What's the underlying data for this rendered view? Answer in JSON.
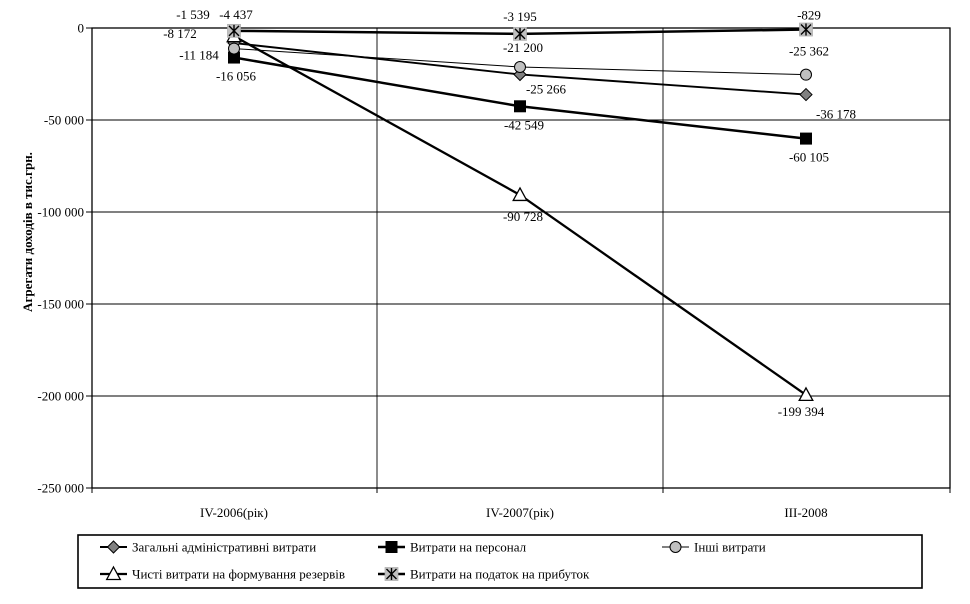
{
  "chart_data": {
    "type": "line",
    "title": "",
    "ylabel": "Агрегати доходів в тис.грн.",
    "xlabel": "",
    "categories": [
      "IV-2006(рік)",
      "IV-2007(рік)",
      "III-2008"
    ],
    "y_axis": {
      "min": -250000,
      "max": 0,
      "step": 50000,
      "tick_labels": [
        "0",
        "-50 000",
        "-100 000",
        "-150 000",
        "-200 000",
        "-250 000"
      ]
    },
    "grid": true,
    "legend_position": "bottom",
    "colors": {
      "line": "#000000",
      "diamond_fill": "#808080",
      "square_fill": "#000000",
      "circle_fill": "#c0c0c0",
      "triangle_fill": "#ffffff",
      "star_fill": "#c0c0c0",
      "text": "#000000",
      "background": "#ffffff"
    },
    "series": [
      {
        "name": "Загальні адміністративні витрати",
        "marker": "diamond",
        "marker_fill": "#808080",
        "line_width": 1.9,
        "values": [
          -8172,
          -25266,
          -36178
        ],
        "labels": [
          "-8 172",
          "-25 266",
          "-36 178"
        ],
        "label_offsets": [
          [
            -54,
            -5
          ],
          [
            26,
            19
          ],
          [
            30,
            24
          ]
        ]
      },
      {
        "name": "Витрати на персонал",
        "marker": "square",
        "marker_fill": "#000000",
        "line_width": 2.5,
        "values": [
          -16056,
          -42549,
          -60105
        ],
        "labels": [
          "-16 056",
          "-42 549",
          "-60 105"
        ],
        "label_offsets": [
          [
            2,
            23
          ],
          [
            4,
            23
          ],
          [
            3,
            23
          ]
        ]
      },
      {
        "name": "Інші витрати",
        "marker": "circle",
        "marker_fill": "#c0c0c0",
        "line_width": 1,
        "values": [
          -11184,
          -21200,
          -25362
        ],
        "labels": [
          "-11 184",
          "-21 200",
          "-25 362"
        ],
        "label_offsets": [
          [
            -35,
            11
          ],
          [
            3,
            -15
          ],
          [
            3,
            -19
          ]
        ]
      },
      {
        "name": "Чисті витрати на формування резервів",
        "marker": "triangle",
        "marker_fill": "#ffffff",
        "line_width": 2.3,
        "values": [
          -4437,
          -90728,
          -199394
        ],
        "labels": [
          "-4 437",
          "-90 728",
          "-199 394"
        ],
        "label_offsets": [
          [
            2,
            -17
          ],
          [
            3,
            26
          ],
          [
            -5,
            21
          ]
        ]
      },
      {
        "name": "Витрати на податок на прибуток",
        "marker": "star",
        "marker_fill": "#c0c0c0",
        "line_width": 2.5,
        "values": [
          -1539,
          -3195,
          -829
        ],
        "labels": [
          "-1 539",
          "-3 195",
          "-829"
        ],
        "label_offsets": [
          [
            -41,
            -12
          ],
          [
            0,
            -13
          ],
          [
            3,
            -10
          ]
        ]
      }
    ],
    "legend_rows": [
      [
        0,
        1,
        2
      ],
      [
        3,
        4
      ]
    ]
  }
}
